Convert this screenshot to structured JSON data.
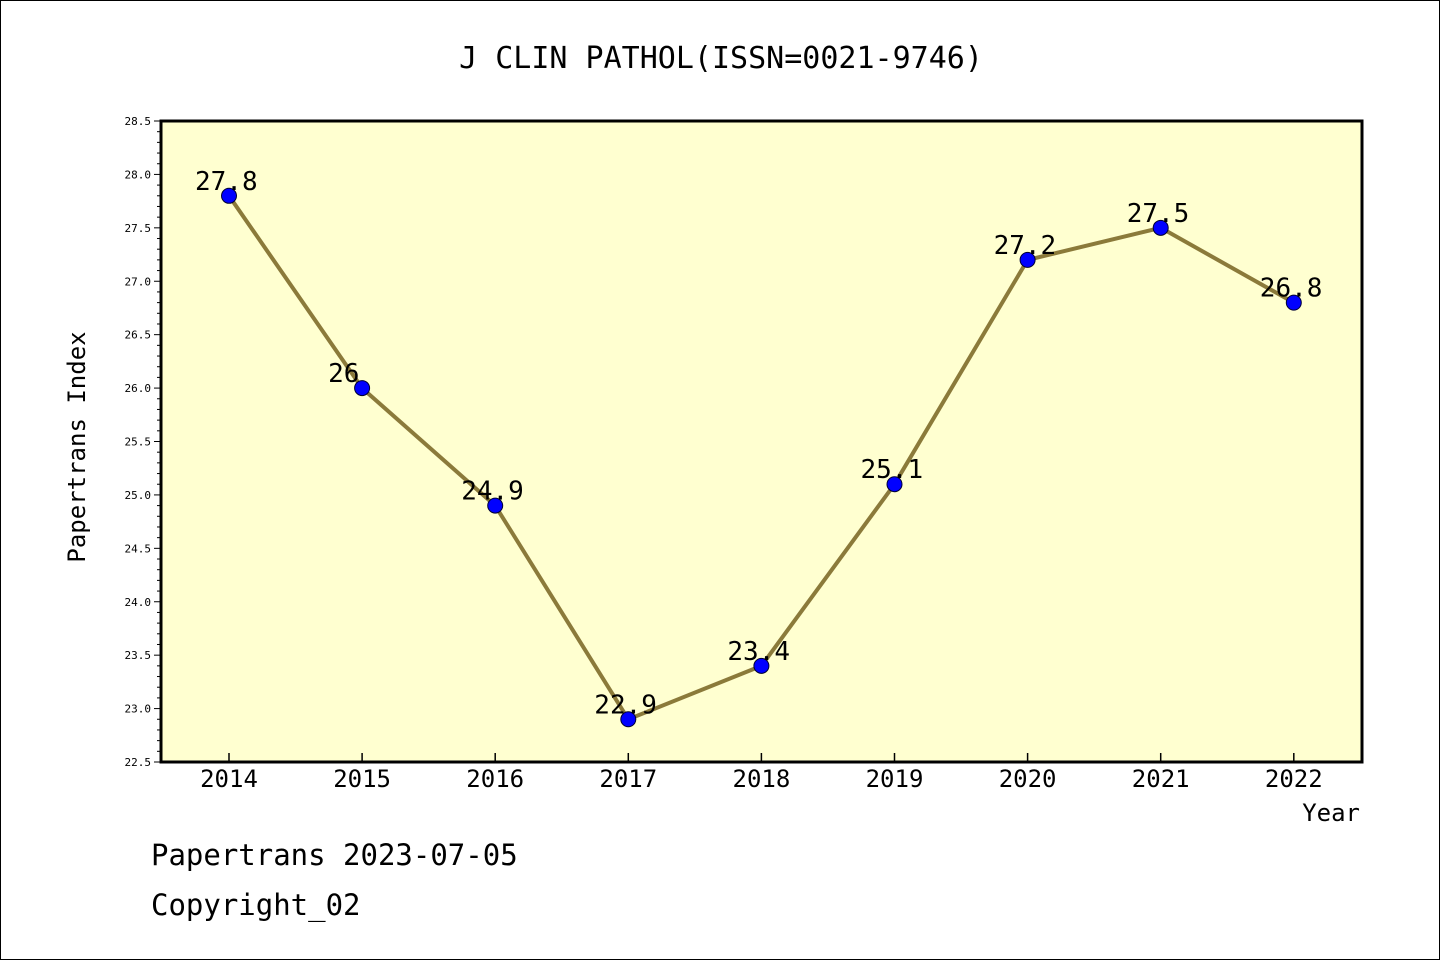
{
  "chart_data": {
    "type": "line",
    "title": "J CLIN PATHOL(ISSN=0021-9746)",
    "xlabel": "Year",
    "ylabel": "Papertrans Index",
    "categories": [
      "2014",
      "2015",
      "2016",
      "2017",
      "2018",
      "2019",
      "2020",
      "2021",
      "2022"
    ],
    "values": [
      27.8,
      26,
      24.9,
      22.9,
      23.4,
      25.1,
      27.2,
      27.5,
      26.8
    ],
    "data_labels": [
      "27.8",
      "26",
      "24.9",
      "22.9",
      "23.4",
      "25.1",
      "27.2",
      "27.5",
      "26.8"
    ],
    "ylim": [
      22.5,
      28.5
    ],
    "yticks": [
      "22.5",
      "23.0",
      "23.5",
      "24.0",
      "24.5",
      "25.0",
      "25.5",
      "26.0",
      "26.5",
      "27.0",
      "27.5",
      "28.0",
      "28.5"
    ],
    "grid": false,
    "colors": {
      "plot_background": "#ffffd0",
      "line": "#8b7a3a",
      "marker": "#0000ff"
    }
  },
  "footer": {
    "line1": "Papertrans 2023-07-05",
    "line2": "Copyright_02"
  }
}
